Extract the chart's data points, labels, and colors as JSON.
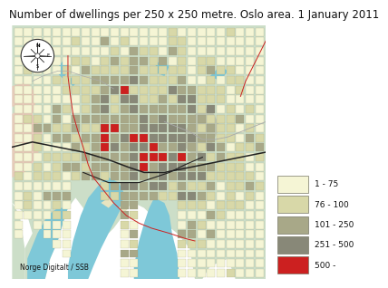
{
  "title": "Number of dwellings per 250 x 250 metre. Oslo area. 1 January 2011",
  "title_fontsize": 8.5,
  "attribution": "Norge Digitalt / SSB",
  "legend_entries": [
    {
      "label": "1 - 75",
      "color": "#f5f5d5"
    },
    {
      "label": "76 - 100",
      "color": "#d8d8a8"
    },
    {
      "label": "101 - 250",
      "color": "#a8a888"
    },
    {
      "label": "251 - 500",
      "color": "#888878"
    },
    {
      "label": "500 -",
      "color": "#cc2020"
    }
  ],
  "land_color": "#ccdec8",
  "water_color": "#7ec8d8",
  "pink_color": "#f0c8b8",
  "light_gray_color": "#b0b0a0",
  "fig_color": "#ffffff",
  "grid_edge_color": "#999977",
  "road_color": "#222222",
  "red_line_color": "#cc2222",
  "gray_line_color": "#aaaaaa"
}
